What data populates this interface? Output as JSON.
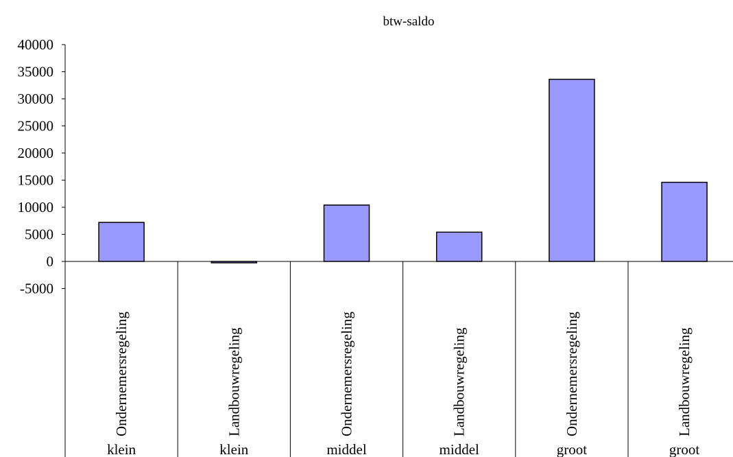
{
  "chart_data": {
    "type": "bar",
    "title": "btw-saldo",
    "xlabel": "",
    "ylabel": "",
    "categories": [
      {
        "inner": "Ondernemersregeling",
        "outer": "klein"
      },
      {
        "inner": "Landbouwregeling",
        "outer": "klein"
      },
      {
        "inner": "Ondernemersregeling",
        "outer": "middel"
      },
      {
        "inner": "Landbouwregeling",
        "outer": "middel"
      },
      {
        "inner": "Ondernemersregeling",
        "outer": "groot"
      },
      {
        "inner": "Landbouwregeling",
        "outer": "groot"
      }
    ],
    "values": [
      7200,
      -200,
      10400,
      5400,
      33600,
      14600
    ],
    "ylim": [
      -5000,
      40000
    ],
    "yticks": [
      40000,
      35000,
      30000,
      25000,
      20000,
      15000,
      10000,
      5000,
      0,
      -5000
    ],
    "grid": false,
    "legend": "none",
    "bar_color": "#9999ff",
    "bar_stroke": "#000000"
  }
}
